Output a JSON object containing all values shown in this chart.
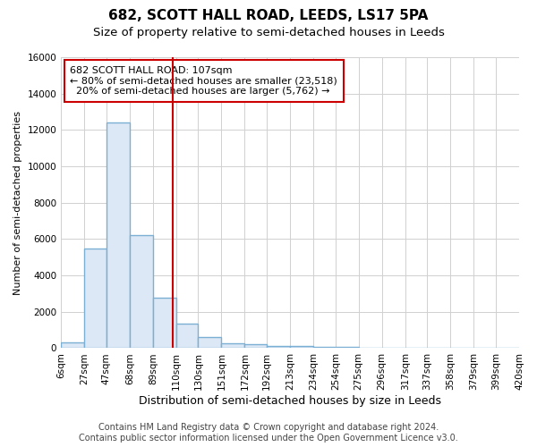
{
  "title1": "682, SCOTT HALL ROAD, LEEDS, LS17 5PA",
  "title2": "Size of property relative to semi-detached houses in Leeds",
  "xlabel": "Distribution of semi-detached houses by size in Leeds",
  "ylabel": "Number of semi-detached properties",
  "footer": "Contains HM Land Registry data © Crown copyright and database right 2024.\nContains public sector information licensed under the Open Government Licence v3.0.",
  "bin_edges": [
    6,
    27,
    47,
    68,
    89,
    110,
    130,
    151,
    172,
    192,
    213,
    234,
    254,
    275,
    296,
    317,
    337,
    358,
    379,
    399,
    420
  ],
  "bar_heights": [
    300,
    5500,
    12400,
    6200,
    2800,
    1350,
    620,
    250,
    200,
    130,
    100,
    70,
    50,
    5,
    5,
    5,
    5,
    5,
    5,
    5
  ],
  "bar_color": "#dce8f5",
  "bar_edge_color": "#7bafd4",
  "bar_edge_width": 1.0,
  "property_size": 107,
  "red_line_color": "#cc0000",
  "annotation_text": "682 SCOTT HALL ROAD: 107sqm\n← 80% of semi-detached houses are smaller (23,518)\n  20% of semi-detached houses are larger (5,762) →",
  "annotation_box_color": "#ffffff",
  "annotation_box_edge_color": "#cc0000",
  "ylim": [
    0,
    16000
  ],
  "yticks": [
    0,
    2000,
    4000,
    6000,
    8000,
    10000,
    12000,
    14000,
    16000
  ],
  "fig_background_color": "#ffffff",
  "plot_background_color": "#ffffff",
  "grid_color": "#d0d0d0",
  "title1_fontsize": 11,
  "title2_fontsize": 9.5,
  "xlabel_fontsize": 9,
  "ylabel_fontsize": 8,
  "tick_fontsize": 7.5,
  "footer_fontsize": 7
}
